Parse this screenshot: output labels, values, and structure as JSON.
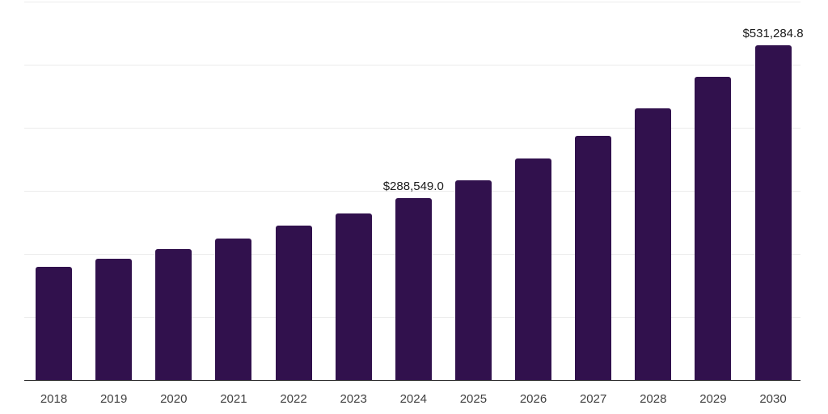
{
  "chart_data": {
    "type": "bar",
    "title": "",
    "xlabel": "",
    "ylabel": "",
    "categories": [
      "2018",
      "2019",
      "2020",
      "2021",
      "2022",
      "2023",
      "2024",
      "2025",
      "2026",
      "2027",
      "2028",
      "2029",
      "2030"
    ],
    "values": [
      179500,
      192300,
      207700,
      224400,
      244900,
      264100,
      288549.0,
      316700,
      351300,
      387200,
      430800,
      480800,
      531284.8
    ],
    "data_labels": [
      "",
      "",
      "",
      "",
      "",
      "",
      "$288,549.0",
      "",
      "",
      "",
      "",
      "",
      "$531,284.8"
    ],
    "ylim": [
      0,
      600000
    ],
    "gridline_interval": 100000,
    "grid": true,
    "legend_position": "none",
    "colors": {
      "bar_fill": "#31114d",
      "gridline": "#ececec",
      "axis_line": "#2e2e2e",
      "data_label_text": "#1a1a1a",
      "tick_label_text": "#404040",
      "background": "#ffffff"
    }
  }
}
